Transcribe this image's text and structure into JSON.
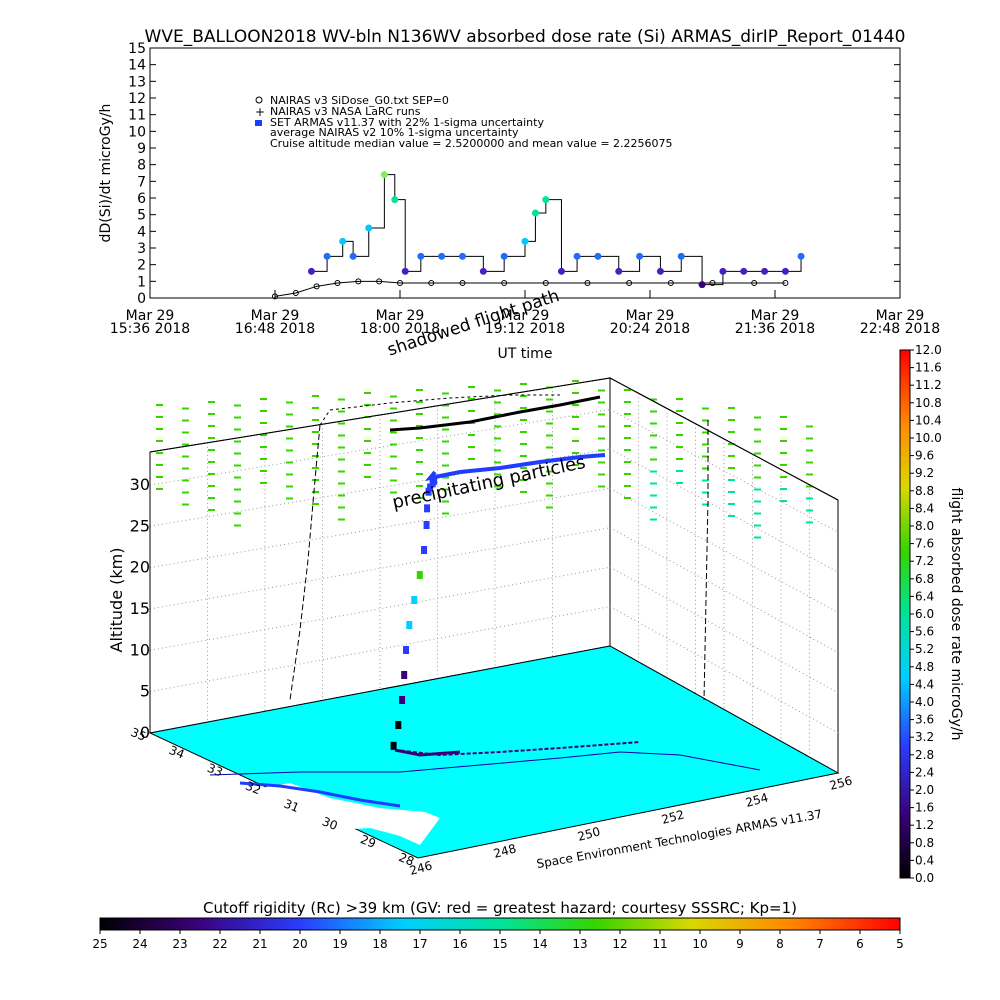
{
  "title": "WVE_BALLOON2018 WV-bln N136WV absorbed dose rate (Si) ARMAS_dirIP_Report_01440",
  "chart_data": [
    {
      "type": "line",
      "ylabel": "dD(Si)/dt microGy/h",
      "xlabel": "UT time",
      "ylim": [
        0,
        15
      ],
      "y_ticks": [
        0,
        1,
        2,
        3,
        4,
        5,
        6,
        7,
        8,
        9,
        10,
        11,
        12,
        13,
        14,
        15
      ],
      "x_ticks": [
        {
          "l1": "Mar 29",
          "l2": "15:36 2018"
        },
        {
          "l1": "Mar 29",
          "l2": "16:48 2018"
        },
        {
          "l1": "Mar 29",
          "l2": "18:00 2018"
        },
        {
          "l1": "Mar 29",
          "l2": "19:12 2018"
        },
        {
          "l1": "Mar 29",
          "l2": "20:24 2018"
        },
        {
          "l1": "Mar 29",
          "l2": "21:36 2018"
        },
        {
          "l1": "Mar 29",
          "l2": "22:48 2018"
        }
      ],
      "legend": [
        {
          "marker": "circle",
          "text": "NAIRAS v3 SiDose_G0.txt SEP=0"
        },
        {
          "marker": "plus",
          "text": "NAIRAS v3 NASA LaRC runs"
        },
        {
          "marker": "square-blue",
          "text": "SET ARMAS v11.37 with 22% 1-sigma uncertainty"
        },
        {
          "marker": "none",
          "text": "average NAIRAS v2 10% 1-sigma uncertainty"
        },
        {
          "marker": "none",
          "text": "Cruise altitude median value = 2.5200000 and mean value = 2.2256075"
        }
      ],
      "annotations": [
        "shadowed flight path"
      ],
      "series": [
        {
          "x_hours_ut": [
            16.8,
            17.0,
            17.2,
            17.4,
            17.6,
            17.8,
            18.0,
            18.3,
            18.6,
            19.0,
            19.4,
            19.8,
            20.2,
            20.6,
            21.0,
            21.4,
            21.7
          ],
          "values": [
            0.1,
            0.3,
            0.7,
            0.9,
            1.0,
            1.0,
            0.9,
            0.9,
            0.9,
            0.9,
            0.9,
            0.9,
            0.9,
            0.9,
            0.9,
            0.9,
            0.9
          ]
        },
        {
          "x_hours_ut": [
            17.15,
            17.3,
            17.45,
            17.55,
            17.7,
            17.85,
            17.95,
            18.05,
            18.2,
            18.4,
            18.6,
            18.8,
            19.0,
            19.2,
            19.3,
            19.4,
            19.55,
            19.7,
            19.9,
            20.1,
            20.3,
            20.5,
            20.7,
            20.9,
            21.1,
            21.3,
            21.5,
            21.7,
            21.85
          ],
          "values": [
            1.6,
            2.5,
            3.4,
            2.5,
            4.2,
            7.4,
            5.9,
            1.6,
            2.5,
            2.5,
            2.5,
            1.6,
            2.5,
            3.4,
            5.1,
            5.9,
            1.6,
            2.5,
            2.5,
            1.6,
            2.5,
            1.6,
            2.5,
            0.8,
            1.6,
            1.6,
            1.6,
            1.6,
            2.5
          ]
        }
      ]
    },
    {
      "type": "scatter",
      "zlabel": "Altitude (km)",
      "z_ticks": [
        0,
        5,
        10,
        15,
        20,
        25,
        30
      ],
      "lat_ticks": [
        28,
        29,
        30,
        31,
        32,
        33,
        34,
        35
      ],
      "lon_ticks": [
        246,
        248,
        250,
        252,
        254,
        256
      ],
      "credit": "Space Environment Technologies ARMAS v11.37",
      "annotations": [
        "precipitating particles"
      ],
      "series": [
        {
          "name": "",
          "z_km": [
            0.5,
            3,
            6,
            9,
            12,
            15,
            18,
            21,
            24,
            27,
            29,
            31,
            31.5,
            32,
            32.3,
            32.5
          ]
        }
      ]
    }
  ],
  "colorbar_right": {
    "label": "flight absorbed dose rate microGy/h",
    "ticks": [
      "12.0",
      "11.6",
      "11.2",
      "10.8",
      "10.4",
      "10.0",
      "9.6",
      "9.2",
      "8.8",
      "8.4",
      "8.0",
      "7.6",
      "7.2",
      "6.8",
      "6.4",
      "6.0",
      "5.6",
      "5.2",
      "4.8",
      "4.4",
      "4.0",
      "3.6",
      "3.2",
      "2.8",
      "2.4",
      "2.0",
      "1.6",
      "1.2",
      "0.8",
      "0.4",
      "0.0"
    ]
  },
  "colorbar_bottom": {
    "label": "Cutoff rigidity (Rc) >39 km (GV: red = greatest hazard; courtesy SSSRC; Kp=1)",
    "ticks": [
      "25",
      "24",
      "23",
      "22",
      "21",
      "20",
      "19",
      "18",
      "17",
      "16",
      "15",
      "14",
      "13",
      "12",
      "11",
      "10",
      "9",
      "8",
      "7",
      "6",
      "5"
    ]
  }
}
